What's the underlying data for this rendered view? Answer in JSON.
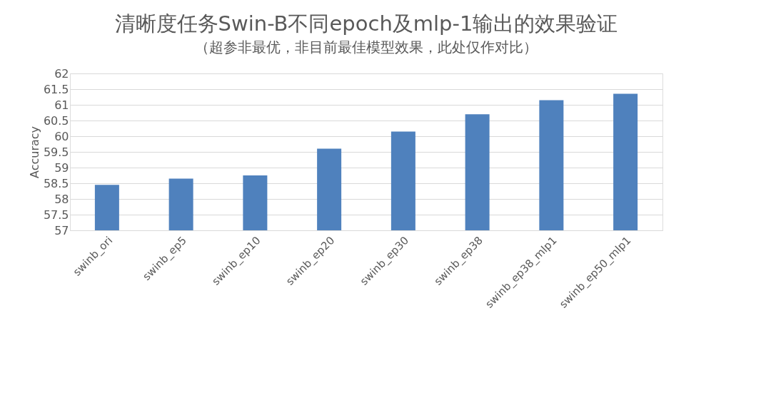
{
  "chart_data": {
    "type": "bar",
    "title": "清晰度任务Swin-B不同epoch及mlp-1输出的效果验证",
    "subtitle": "（超参非最优，非目前最佳模型效果，此处仅作对比）",
    "ylabel": "Accuracy",
    "categories": [
      "swinb_ori",
      "swinb_ep5",
      "swinb_ep10",
      "swinb_ep20",
      "swinb_ep30",
      "swinb_ep38",
      "swinb_ep38_mlp1",
      "swinb_ep50_mlp1"
    ],
    "values": [
      58.45,
      58.65,
      58.75,
      59.6,
      60.15,
      60.7,
      61.15,
      61.35
    ],
    "color": "#4f81bd",
    "ylim": [
      57,
      62
    ],
    "yticks": [
      57,
      57.5,
      58,
      58.5,
      59,
      59.5,
      60,
      60.5,
      61,
      61.5,
      62
    ],
    "grid": "y"
  }
}
